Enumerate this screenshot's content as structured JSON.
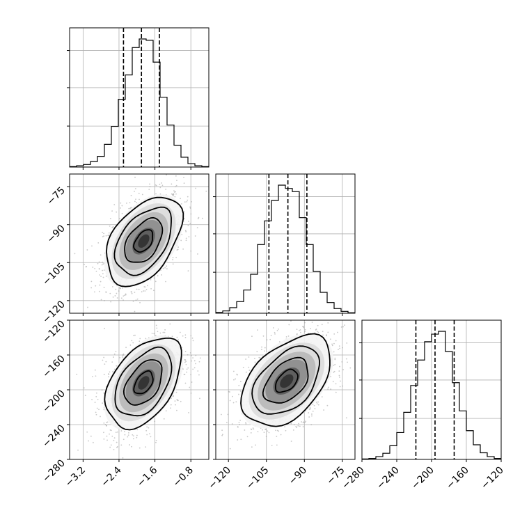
{
  "chart_data": {
    "type": "corner",
    "parameters": [
      {
        "range": [
          -3.5,
          -0.4
        ],
        "ticks": [
          -3.2,
          -2.4,
          -1.6,
          -0.8
        ],
        "tick_labels": [
          "−3.2",
          "−2.4",
          "−1.6",
          "−0.8"
        ],
        "quantiles": [
          -2.3,
          -1.9,
          -1.5
        ]
      },
      {
        "range": [
          -125,
          -70
        ],
        "ticks": [
          -75,
          -90,
          -105,
          -120
        ],
        "tick_labels": [
          "−75",
          "−90",
          "−105",
          "−120"
        ],
        "xticks": [
          -120,
          -105,
          -90,
          -75
        ],
        "xtick_labels": [
          "−120",
          "−105",
          "−90",
          "−75"
        ],
        "quantiles": [
          -104,
          -96.5,
          -89
        ]
      },
      {
        "range": [
          -280,
          -120
        ],
        "ticks": [
          -120,
          -160,
          -200,
          -240,
          -280
        ],
        "tick_labels": [
          "−120",
          "−160",
          "−200",
          "−240",
          "−280"
        ],
        "xticks": [
          -280,
          -240,
          -200,
          -160,
          -120
        ],
        "xtick_labels": [
          "−280",
          "−240",
          "−200",
          "−160",
          "−120"
        ],
        "quantiles": [
          -218,
          -196,
          -174
        ]
      }
    ],
    "histograms": [
      {
        "bin_edges": [
          -3.5,
          -3.345,
          -3.19,
          -3.035,
          -2.88,
          -2.725,
          -2.57,
          -2.415,
          -2.26,
          -2.105,
          -1.95,
          -1.795,
          -1.64,
          -1.485,
          -1.33,
          -1.175,
          -1.02,
          -0.865,
          -0.71,
          -0.555,
          -0.4
        ],
        "counts": [
          1,
          3,
          6,
          13,
          25,
          53,
          95,
          158,
          215,
          279,
          299,
          296,
          245,
          163,
          98,
          51,
          23,
          8,
          3,
          1
        ]
      },
      {
        "bin_edges": [
          -125,
          -122.25,
          -119.5,
          -116.75,
          -114,
          -111.25,
          -108.5,
          -105.75,
          -103,
          -100.25,
          -97.5,
          -94.75,
          -92,
          -89.25,
          -86.5,
          -83.75,
          -81,
          -78.25,
          -75.5,
          -72.75,
          -70
        ],
        "counts": [
          2,
          5,
          12,
          25,
          50,
          84,
          148,
          199,
          243,
          276,
          269,
          262,
          206,
          148,
          90,
          45,
          23,
          10,
          4,
          1
        ]
      },
      {
        "bin_edges": [
          -280,
          -272,
          -264,
          -256,
          -248,
          -240,
          -232,
          -224,
          -216,
          -208,
          -200,
          -192,
          -184,
          -176,
          -168,
          -160,
          -152,
          -144,
          -136,
          -128,
          -120
        ],
        "counts": [
          1,
          2,
          6,
          13,
          29,
          57,
          100,
          157,
          211,
          250,
          266,
          272,
          229,
          163,
          103,
          61,
          31,
          14,
          6,
          2
        ]
      }
    ],
    "panels_2d": [
      {
        "row": 1,
        "col": 0,
        "x_param": 0,
        "y_param": 1,
        "center": [
          -1.85,
          -96.5
        ],
        "sd": [
          0.42,
          8.8
        ],
        "corr": 0.45
      },
      {
        "row": 2,
        "col": 0,
        "x_param": 0,
        "y_param": 2,
        "center": [
          -1.85,
          -192
        ],
        "sd": [
          0.42,
          26
        ],
        "corr": 0.45
      },
      {
        "row": 2,
        "col": 1,
        "x_param": 1,
        "y_param": 2,
        "center": [
          -97,
          -190
        ],
        "sd": [
          8.8,
          26
        ],
        "corr": 0.45
      }
    ],
    "contour_levels_sigma": [
      0.5,
      1.0,
      1.5,
      2.0
    ],
    "grid": true
  }
}
